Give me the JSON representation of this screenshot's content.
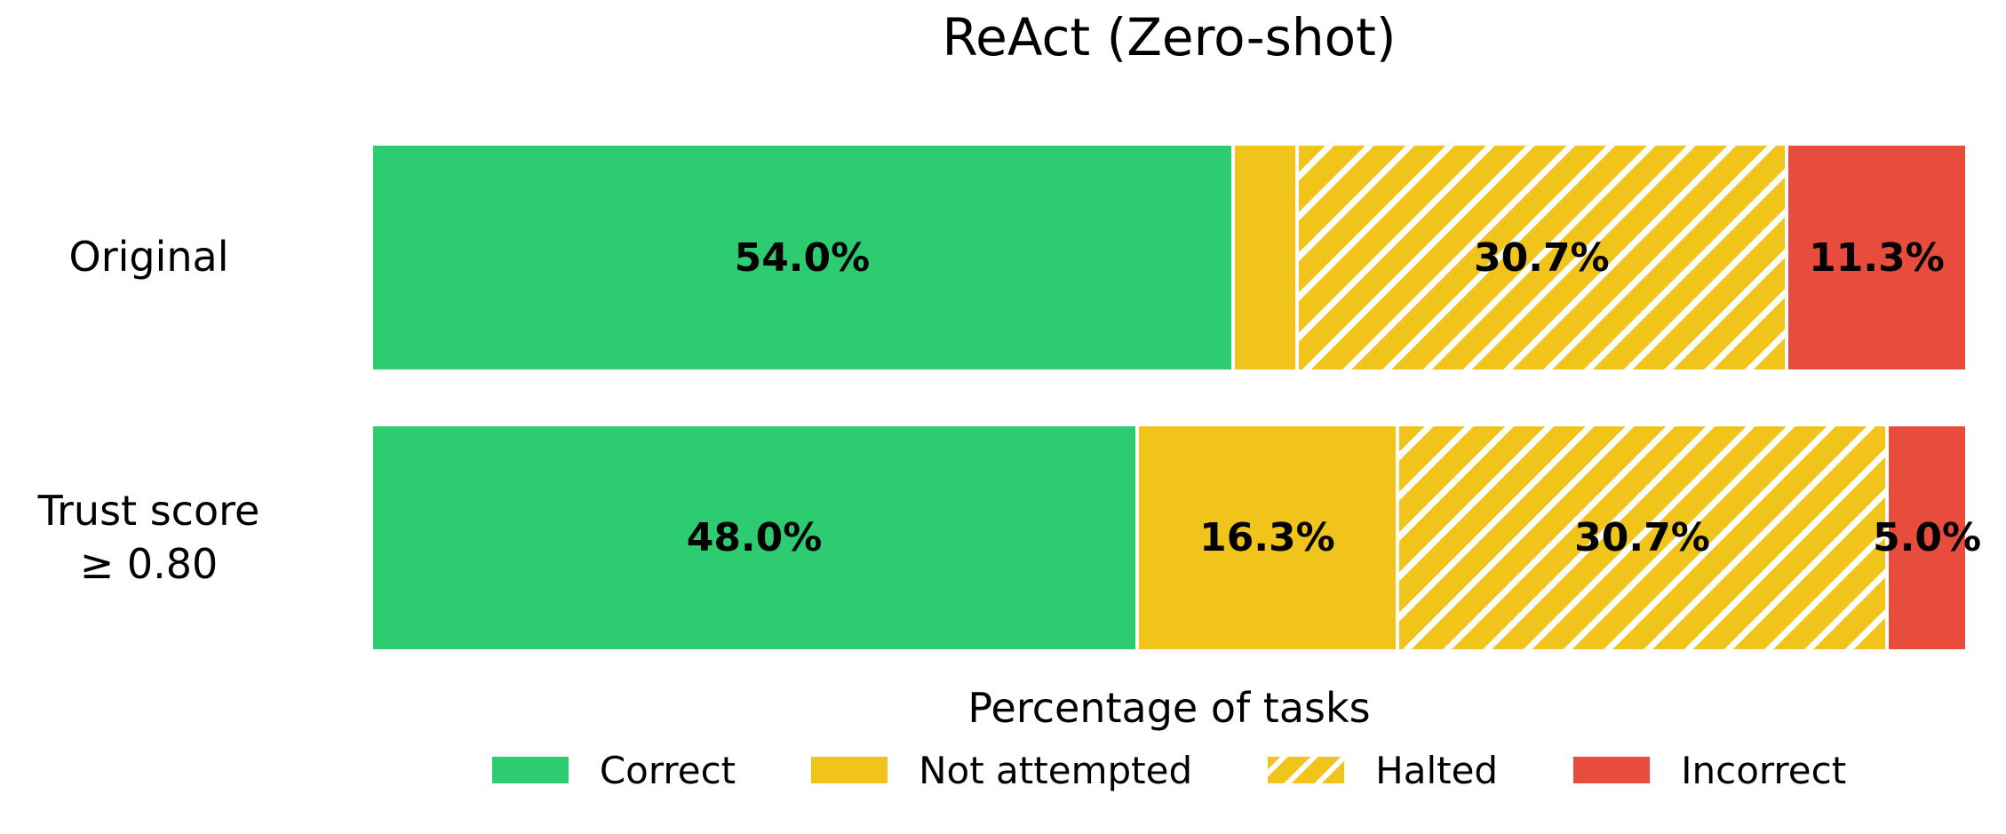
{
  "title": "ReAct (Zero-shot)",
  "xlabel": "Percentage of tasks",
  "colors": {
    "correct": "#2ecc71",
    "not_attempted": "#f0c41a",
    "halted_fill": "#f0c41a",
    "halted_hatch": "#ffffff",
    "incorrect": "#e74c3c",
    "text": "#000000",
    "background": "#ffffff"
  },
  "bars": [
    {
      "category": "Original",
      "segments": [
        {
          "series": "Correct",
          "value": 54.0,
          "label": "54.0%"
        },
        {
          "series": "Not attempted",
          "value": 4.0,
          "label": ""
        },
        {
          "series": "Halted",
          "value": 30.7,
          "label": "30.7%"
        },
        {
          "series": "Incorrect",
          "value": 11.3,
          "label": "11.3%"
        }
      ]
    },
    {
      "category": "Trust score\n≥ 0.80",
      "segments": [
        {
          "series": "Correct",
          "value": 48.0,
          "label": "48.0%"
        },
        {
          "series": "Not attempted",
          "value": 16.3,
          "label": "16.3%"
        },
        {
          "series": "Halted",
          "value": 30.7,
          "label": "30.7%"
        },
        {
          "series": "Incorrect",
          "value": 5.0,
          "label": "5.0%"
        }
      ]
    }
  ],
  "legend": [
    {
      "label": "Correct",
      "hatched": false
    },
    {
      "label": "Not attempted",
      "hatched": false
    },
    {
      "label": "Halted",
      "hatched": true
    },
    {
      "label": "Incorrect",
      "hatched": false
    }
  ],
  "chart_data": {
    "type": "bar",
    "orientation": "horizontal",
    "stacked": true,
    "title": "ReAct (Zero-shot)",
    "xlabel": "Percentage of tasks",
    "xlim": [
      0,
      100
    ],
    "grid": false,
    "legend_position": "bottom",
    "categories": [
      "Original",
      "Trust score ≥ 0.80"
    ],
    "series": [
      {
        "name": "Correct",
        "values": [
          54.0,
          48.0
        ],
        "color": "#2ecc71"
      },
      {
        "name": "Not attempted",
        "values": [
          4.0,
          16.3
        ],
        "color": "#f0c41a"
      },
      {
        "name": "Halted",
        "values": [
          30.7,
          30.7
        ],
        "color": "#f0c41a",
        "hatch": "/",
        "hatch_color": "#ffffff"
      },
      {
        "name": "Incorrect",
        "values": [
          11.3,
          5.0
        ],
        "color": "#e74c3c"
      }
    ],
    "bar_labels": [
      [
        "54.0%",
        "",
        "30.7%",
        "11.3%"
      ],
      [
        "48.0%",
        "16.3%",
        "30.7%",
        "5.0%"
      ]
    ]
  }
}
